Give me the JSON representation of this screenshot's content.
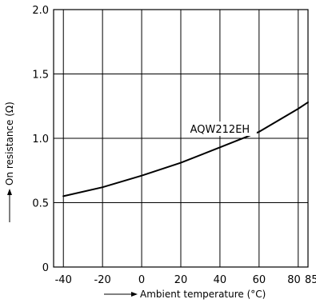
{
  "chart_data": {
    "type": "line",
    "xlabel": "Ambient temperature (°C)",
    "ylabel": "On resistance (Ω)",
    "xlim": [
      -45,
      85
    ],
    "ylim": [
      0,
      2.0
    ],
    "x_ticks": [
      -40,
      -20,
      0,
      20,
      40,
      60,
      80,
      85
    ],
    "x_tick_labels": [
      "-40",
      "-20",
      "0",
      "20",
      "40",
      "60",
      "80",
      "85"
    ],
    "y_ticks": [
      0,
      0.5,
      1.0,
      1.5,
      2.0
    ],
    "y_tick_labels": [
      "0",
      "0.5",
      "1.0",
      "1.5",
      "2.0"
    ],
    "grid": true,
    "series": [
      {
        "name": "AQW212EH",
        "x": [
          -40,
          -20,
          0,
          20,
          40,
          60,
          80,
          85
        ],
        "y": [
          0.55,
          0.62,
          0.71,
          0.81,
          0.93,
          1.05,
          1.23,
          1.28
        ]
      }
    ],
    "annotations": [
      {
        "text": "AQW212EH",
        "x": 40,
        "y": 1.0
      }
    ]
  }
}
